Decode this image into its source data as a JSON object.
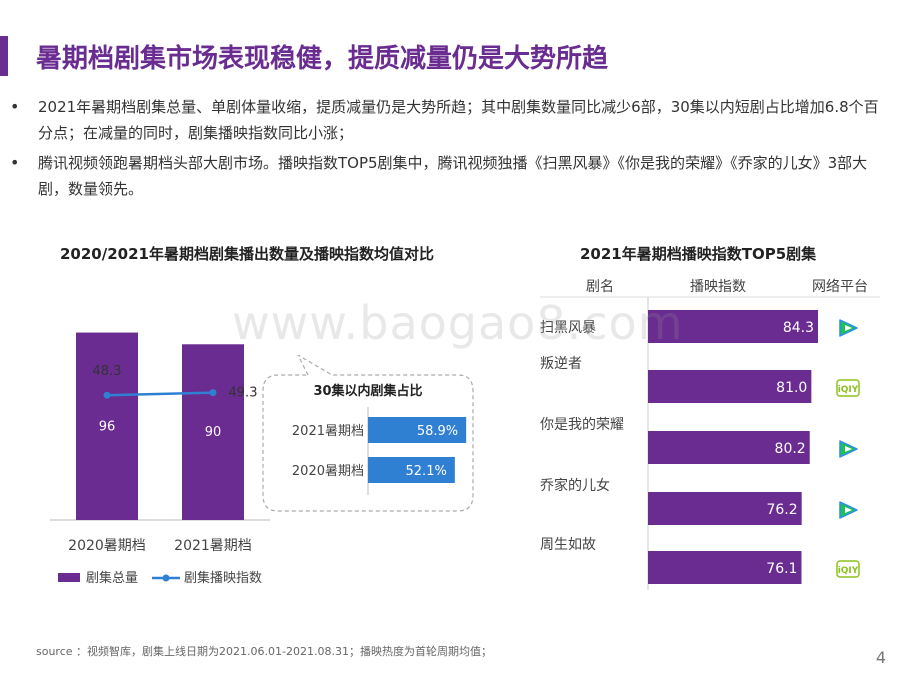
{
  "title": "暑期档剧集市场表现稳健，提质减量仍是大势所趋",
  "bullets": [
    "2021年暑期档剧集总量、单剧体量收缩，提质减量仍是大势所趋；其中剧集数量同比减少6部，30集以内短剧占比增加6.8个百分点；在减量的同时，剧集播映指数同比小涨；",
    "腾讯视频领跑暑期档头部大剧市场。播映指数TOP5剧集中，腾讯视频独播《扫黑风暴》《你是我的荣耀》《乔家的儿女》3部大剧，数量领先。"
  ],
  "chart_data": [
    {
      "type": "bar",
      "title": "2020/2021年暑期档剧集播出数量及播映指数均值对比",
      "categories": [
        "2020暑期档",
        "2021暑期档"
      ],
      "series": [
        {
          "name": "剧集总量",
          "type": "bar",
          "values": [
            96,
            90
          ],
          "labels": [
            "96",
            "90"
          ],
          "color": "#6a2c91"
        },
        {
          "name": "剧集播映指数",
          "type": "line",
          "values": [
            48.3,
            49.3
          ],
          "labels": [
            "48.3",
            "49.3"
          ],
          "color": "#2f7fd2"
        }
      ],
      "legend_position": "bottom-left"
    },
    {
      "type": "bar",
      "title": "30集以内剧集占比",
      "orientation": "horizontal",
      "categories": [
        "2021暑期档",
        "2020暑期档"
      ],
      "values": [
        58.9,
        52.1
      ],
      "labels": [
        "58.9%",
        "52.1%"
      ],
      "color": "#2f7fd2"
    },
    {
      "type": "bar",
      "title": "2021年暑期档播映指数TOP5剧集",
      "orientation": "horizontal",
      "columns": [
        "剧名",
        "播映指数",
        "网络平台"
      ],
      "categories": [
        "扫黑风暴",
        "叛逆者",
        "你是我的荣耀",
        "乔家的儿女",
        "周生如故"
      ],
      "values": [
        84.3,
        81.0,
        80.2,
        76.2,
        76.1
      ],
      "labels": [
        "84.3",
        "81.0",
        "80.2",
        "76.2",
        "76.1"
      ],
      "platform_icons": [
        "tencent-video-icon",
        "iqiyi-icon",
        "tencent-video-icon",
        "tencent-video-icon",
        "iqiyi-icon"
      ],
      "platform_labels": [
        "",
        "iQIY",
        "",
        "",
        "iQIY"
      ],
      "color": "#6a2c91"
    }
  ],
  "watermark": "www.baogao8.com",
  "source": "source ：视频智库，剧集上线日期为2021.06.01-2021.08.31；播映热度为首轮周期均值；",
  "page_number": "4",
  "colors": {
    "accent": "#6a2c91",
    "line": "#2f7fd2",
    "tencent_green": "#1fbf5a",
    "tencent_blue": "#2a8cf0",
    "iqiyi_green": "#8dc21f"
  }
}
